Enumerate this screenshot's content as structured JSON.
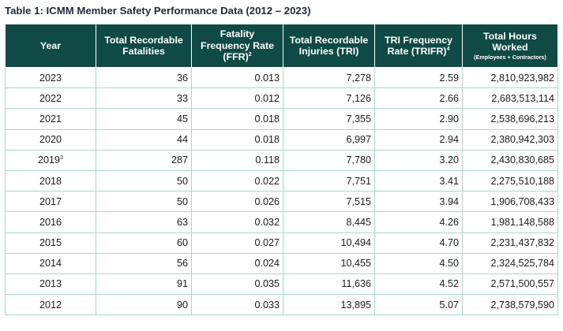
{
  "title": "Table 1: ICMM Member Safety Performance Data (2012 – 2023)",
  "headers": {
    "year": "Year",
    "fatalities": "Total Recordable Fatalities",
    "ffr": "Fatality Frequency Rate (FFR)",
    "ffr_sup": "2",
    "tri": "Total Recordable Injuries (TRI)",
    "trifr": "TRI Frequency Rate (TRIFR)",
    "trifr_sup": "4",
    "hours": "Total Hours Worked",
    "hours_sub": "(Employees + Contractors)"
  },
  "rows": [
    {
      "year": "2023",
      "year_sup": "",
      "fatalities": "36",
      "ffr": "0.013",
      "tri": "7,278",
      "trifr": "2.59",
      "hours": "2,810,923,982"
    },
    {
      "year": "2022",
      "year_sup": "",
      "fatalities": "33",
      "ffr": "0.012",
      "tri": "7,126",
      "trifr": "2.66",
      "hours": "2,683,513,114"
    },
    {
      "year": "2021",
      "year_sup": "",
      "fatalities": "45",
      "ffr": "0.018",
      "tri": "7,355",
      "trifr": "2.90",
      "hours": "2,538,696,213"
    },
    {
      "year": "2020",
      "year_sup": "",
      "fatalities": "44",
      "ffr": "0.018",
      "tri": "6,997",
      "trifr": "2.94",
      "hours": "2,380,942,303"
    },
    {
      "year": "2019",
      "year_sup": "3",
      "fatalities": "287",
      "ffr": "0.118",
      "tri": "7,780",
      "trifr": "3.20",
      "hours": "2,430,830,685"
    },
    {
      "year": "2018",
      "year_sup": "",
      "fatalities": "50",
      "ffr": "0.022",
      "tri": "7,751",
      "trifr": "3.41",
      "hours": "2,275,510,188"
    },
    {
      "year": "2017",
      "year_sup": "",
      "fatalities": "50",
      "ffr": "0.026",
      "tri": "7,515",
      "trifr": "3.94",
      "hours": "1,906,708,433"
    },
    {
      "year": "2016",
      "year_sup": "",
      "fatalities": "63",
      "ffr": "0.032",
      "tri": "8,445",
      "trifr": "4.26",
      "hours": "1,981,148,588"
    },
    {
      "year": "2015",
      "year_sup": "",
      "fatalities": "60",
      "ffr": "0.027",
      "tri": "10,494",
      "trifr": "4.70",
      "hours": "2,231,437,832"
    },
    {
      "year": "2014",
      "year_sup": "",
      "fatalities": "56",
      "ffr": "0.024",
      "tri": "10,455",
      "trifr": "4.50",
      "hours": "2,324,525,784"
    },
    {
      "year": "2013",
      "year_sup": "",
      "fatalities": "91",
      "ffr": "0.035",
      "tri": "11,636",
      "trifr": "4.52",
      "hours": "2,571,500,557"
    },
    {
      "year": "2012",
      "year_sup": "",
      "fatalities": "90",
      "ffr": "0.033",
      "tri": "13,895",
      "trifr": "5.07",
      "hours": "2,738,579,590"
    }
  ]
}
